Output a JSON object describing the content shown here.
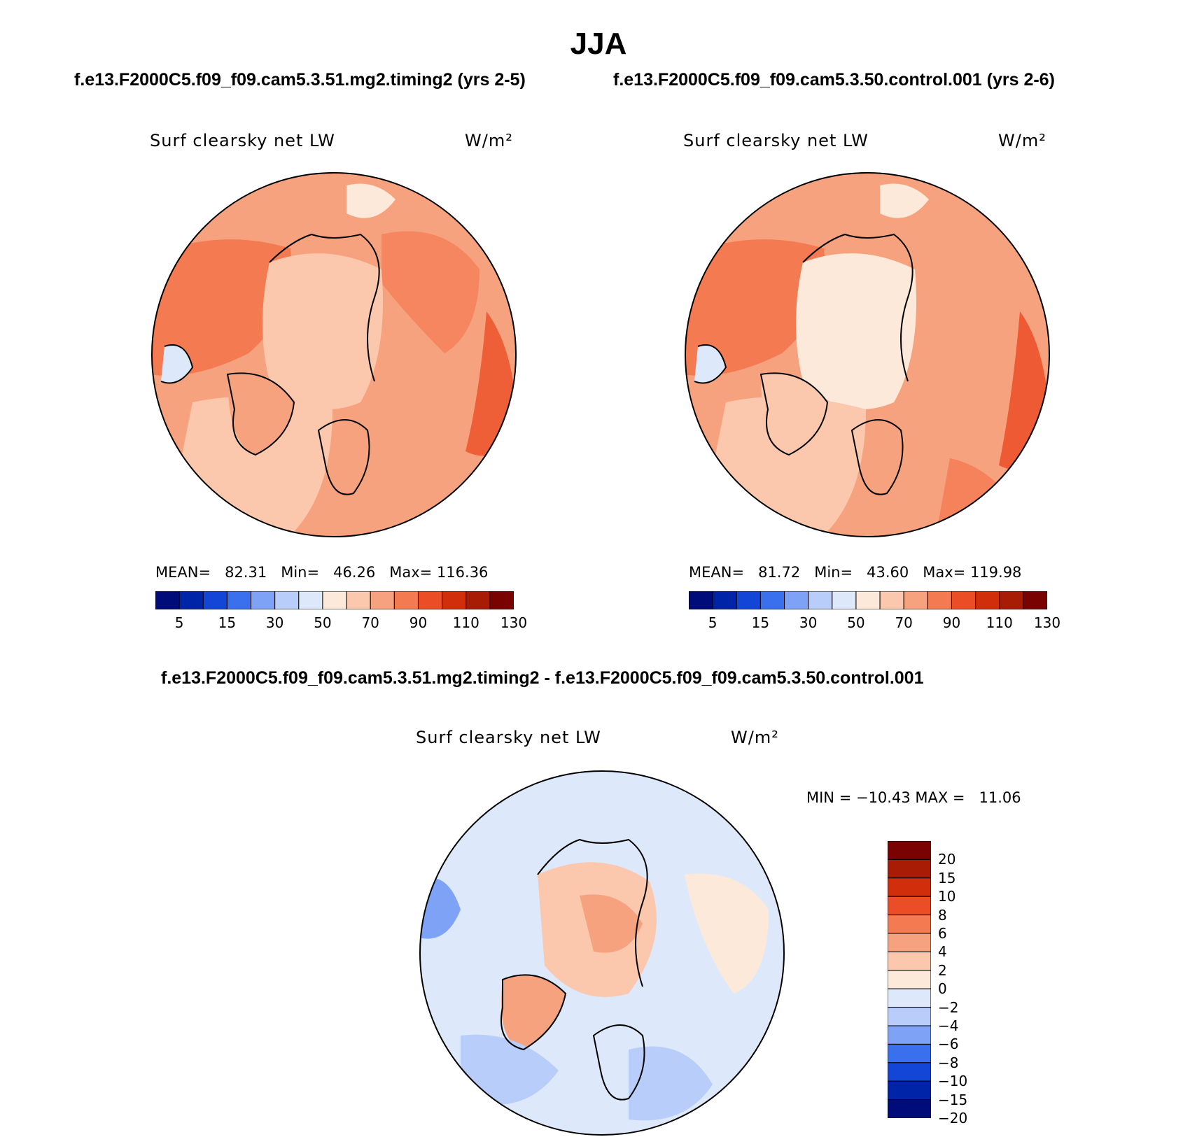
{
  "title": "JJA",
  "header": {
    "case1": "f.e13.F2000C5.f09_f09.cam5.3.51.mg2.timing2 (yrs 2-5)",
    "case2": "f.e13.F2000C5.f09_f09.cam5.3.50.control.001 (yrs 2-6)",
    "diff": "f.e13.F2000C5.f09_f09.cam5.3.51.mg2.timing2 - f.e13.F2000C5.f09_f09.cam5.3.50.control.001"
  },
  "panels": [
    {
      "variable": "Surf clearsky net LW",
      "units": "W/m²",
      "stats": "MEAN=   82.31   Min=   46.26   Max= 116.36",
      "mean": 82.31,
      "min": 46.26,
      "max": 116.36
    },
    {
      "variable": "Surf clearsky net LW",
      "units": "W/m²",
      "stats": "MEAN=   81.72   Min=   43.60   Max= 119.98",
      "mean": 81.72,
      "min": 43.6,
      "max": 119.98
    }
  ],
  "diff_panel": {
    "variable": "Surf clearsky net LW",
    "units": "W/m²",
    "stats": "MIN = −10.43 MAX =   11.06",
    "min": -10.43,
    "max": 11.06
  },
  "colorbar_abs": {
    "colors": [
      "#000c7a",
      "#0024a8",
      "#1346d6",
      "#3a70ee",
      "#7ea3f6",
      "#b8cdfa",
      "#dde9fb",
      "#fde9da",
      "#fbc7ad",
      "#f7a27e",
      "#f47a52",
      "#eb4e26",
      "#d12e0c",
      "#a81b05",
      "#7a0301"
    ],
    "tick_labels": [
      "5",
      "15",
      "30",
      "50",
      "70",
      "90",
      "110",
      "130"
    ]
  },
  "colorbar_diff": {
    "colors": [
      "#7a0301",
      "#a81b05",
      "#d12e0c",
      "#eb4e26",
      "#f47a52",
      "#f7a27e",
      "#fbc7ad",
      "#fde9da",
      "#dde9fb",
      "#b8cdfa",
      "#7ea3f6",
      "#3a70ee",
      "#1346d6",
      "#0024a8",
      "#000c7a"
    ],
    "tick_labels": [
      "20",
      "15",
      "10",
      "8",
      "6",
      "4",
      "2",
      "0",
      "−2",
      "−4",
      "−6",
      "−8",
      "−10",
      "−15",
      "−20"
    ]
  }
}
